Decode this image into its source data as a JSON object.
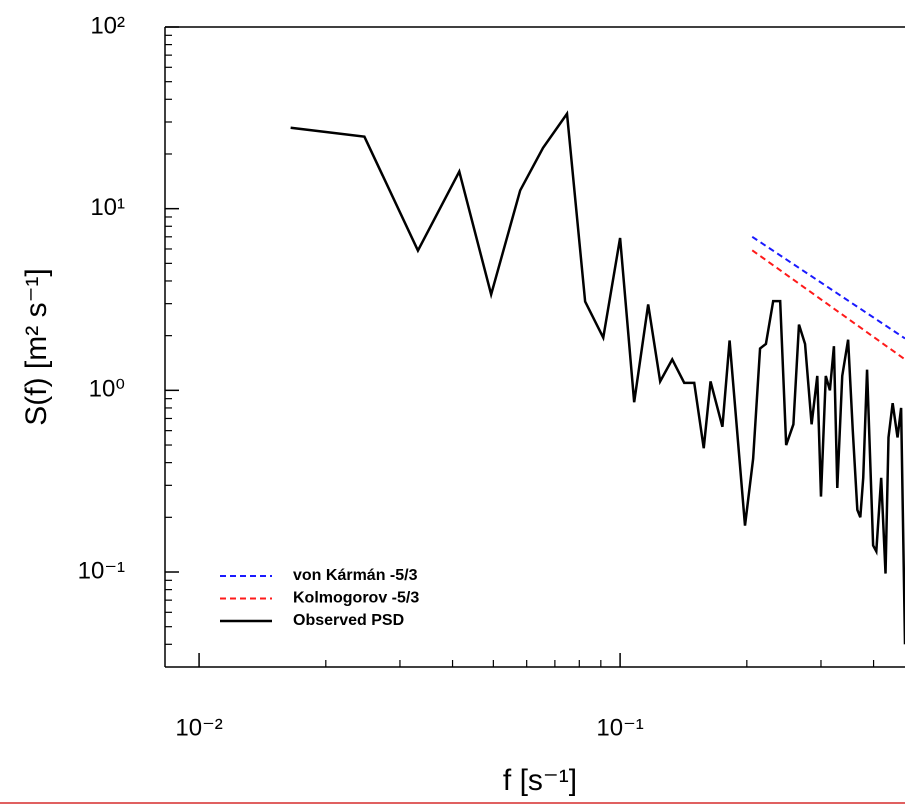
{
  "chart_data": {
    "type": "line",
    "xlabel": "f [s⁻¹]",
    "ylabel": "S(f) [m² s⁻¹]",
    "log_x": true,
    "log_y": true,
    "minor_ticks": true,
    "xlim": [
      0.0083,
      0.475
    ],
    "ylim": [
      0.03,
      100
    ],
    "xticks": [
      {
        "value": 0.01,
        "label": "10⁻²"
      },
      {
        "value": 0.1,
        "label": "10⁻¹"
      }
    ],
    "yticks": [
      {
        "value": 0.1,
        "label": "10⁻¹"
      },
      {
        "value": 1,
        "label": "10⁰"
      },
      {
        "value": 10,
        "label": "10¹"
      },
      {
        "value": 100,
        "label": "10²"
      }
    ],
    "legend": "lower left",
    "series": [
      {
        "name": "von Kármán -5/3",
        "color": "#1a1aff",
        "dash": true,
        "x": [
          0.206,
          0.475
        ],
        "values": [
          7.0,
          1.93
        ]
      },
      {
        "name": "Kolmogorov -5/3",
        "color": "#ff1a1a",
        "dash": true,
        "x": [
          0.206,
          0.475
        ],
        "values": [
          5.9,
          1.48
        ]
      },
      {
        "name": "Observed PSD",
        "color": "#000000",
        "dash": false,
        "x": [
          0.0165,
          0.0247,
          0.0331,
          0.0415,
          0.0494,
          0.0579,
          0.0656,
          0.0748,
          0.0826,
          0.0912,
          0.1,
          0.108,
          0.1166,
          0.1245,
          0.133,
          0.142,
          0.15,
          0.158,
          0.164,
          0.175,
          0.182,
          0.198,
          0.207,
          0.215,
          0.222,
          0.231,
          0.24,
          0.248,
          0.258,
          0.266,
          0.275,
          0.285,
          0.294,
          0.3,
          0.308,
          0.315,
          0.322,
          0.328,
          0.337,
          0.348,
          0.357,
          0.366,
          0.372,
          0.378,
          0.386,
          0.399,
          0.406,
          0.417,
          0.427,
          0.434,
          0.444,
          0.456,
          0.465,
          0.475
        ],
        "values": [
          27.9,
          24.9,
          5.88,
          16.0,
          3.37,
          12.6,
          21.6,
          33.3,
          3.08,
          1.95,
          6.9,
          0.86,
          2.97,
          1.12,
          1.48,
          1.1,
          1.1,
          0.48,
          1.12,
          0.63,
          1.88,
          0.18,
          0.42,
          1.7,
          1.8,
          3.1,
          3.1,
          0.5,
          0.65,
          2.3,
          1.8,
          0.65,
          1.2,
          0.26,
          1.2,
          1.0,
          1.75,
          0.29,
          1.2,
          1.9,
          0.6,
          0.22,
          0.2,
          0.33,
          1.3,
          0.14,
          0.13,
          0.33,
          0.098,
          0.55,
          0.85,
          0.55,
          0.8,
          0.04
        ]
      }
    ]
  }
}
